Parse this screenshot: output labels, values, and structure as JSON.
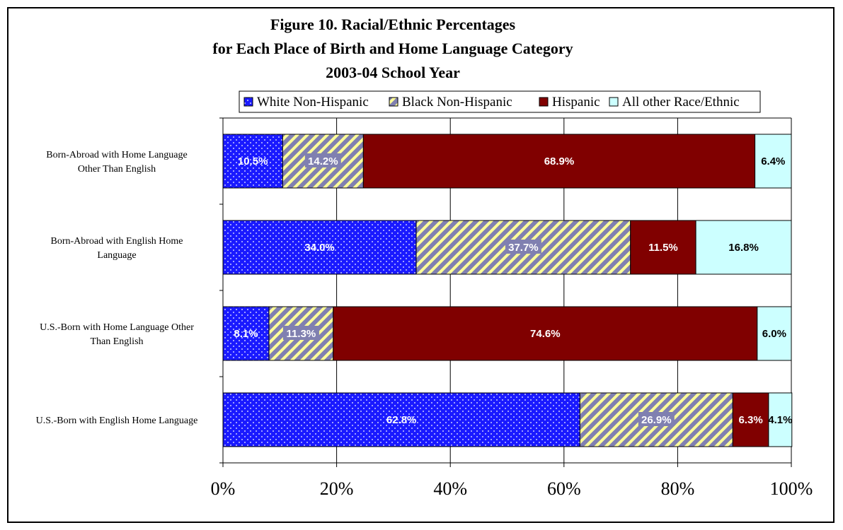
{
  "chart_data": {
    "type": "bar",
    "orientation": "horizontal",
    "stacked": "percent",
    "title_lines": [
      "Figure 10. Racial/Ethnic Percentages",
      "for Each Place of Birth and Home Language Category",
      "2003-04 School Year"
    ],
    "legend_position": "top",
    "categories": [
      "Born-Abroad with Home Language Other Than English",
      "Born-Abroad with English Home Language",
      "U.S.-Born with Home Language Other Than English",
      "U.S.-Born with English Home Language"
    ],
    "category_label_lines": [
      [
        "Born-Abroad with Home Language",
        "Other Than English"
      ],
      [
        "Born-Abroad with English Home",
        "Language"
      ],
      [
        "U.S.-Born with Home Language Other",
        "Than English"
      ],
      [
        "U.S.-Born with English Home Language"
      ]
    ],
    "series": [
      {
        "name": "White Non-Hispanic",
        "values": [
          10.5,
          34.0,
          8.1,
          62.8
        ],
        "labels": [
          "10.5%",
          "34.0%",
          "8.1%",
          "62.8%"
        ],
        "color": "#1a1aff",
        "pattern": "dots"
      },
      {
        "name": "Black Non-Hispanic",
        "values": [
          14.2,
          37.7,
          11.3,
          26.9
        ],
        "labels": [
          "14.2%",
          "37.7%",
          "11.3%",
          "26.9%"
        ],
        "color": "#8080b0",
        "pattern": "diagonal-stripes-yellow"
      },
      {
        "name": "Hispanic",
        "values": [
          68.9,
          11.5,
          74.6,
          6.3
        ],
        "labels": [
          "68.9%",
          "11.5%",
          "74.6%",
          "6.3%"
        ],
        "color": "#800000",
        "pattern": "solid"
      },
      {
        "name": "All other Race/Ethnic",
        "values": [
          6.4,
          16.8,
          6.0,
          4.1
        ],
        "labels": [
          "6.4%",
          "16.8%",
          "6.0%",
          "4.1%"
        ],
        "color": "#ccffff",
        "pattern": "solid"
      }
    ],
    "x_ticks": [
      "0%",
      "20%",
      "40%",
      "60%",
      "80%",
      "100%"
    ],
    "xlim": [
      0,
      100
    ],
    "grid": true
  }
}
